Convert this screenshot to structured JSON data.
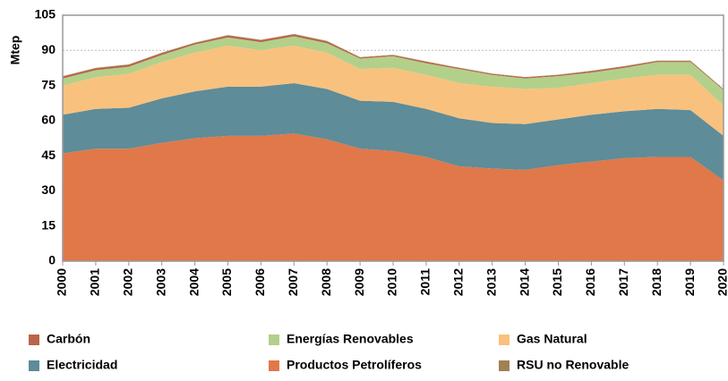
{
  "chart_data": {
    "type": "stacked_area",
    "y_label": "Mtep",
    "categories": [
      "2000",
      "2001",
      "2002",
      "2003",
      "2004",
      "2005",
      "2006",
      "2007",
      "2008",
      "2009",
      "2010",
      "2011",
      "2012",
      "2013",
      "2014",
      "2015",
      "2016",
      "2017",
      "2018",
      "2019",
      "2020"
    ],
    "series": [
      {
        "name": "Productos Petrolíferos",
        "color": "#e0784a",
        "values": [
          46,
          48,
          48,
          50.5,
          52.5,
          53.5,
          53.5,
          54.5,
          52,
          48,
          47,
          44.5,
          40.5,
          39.5,
          39,
          41,
          42.5,
          44,
          44.5,
          44.5,
          34.5
        ]
      },
      {
        "name": "Electricidad",
        "color": "#5e8c98",
        "values": [
          16.5,
          17,
          17.5,
          19,
          20,
          21,
          21,
          21.5,
          21.5,
          20.5,
          21,
          20.5,
          20.5,
          19.5,
          19.5,
          19.5,
          20,
          20,
          20.5,
          20,
          19
        ]
      },
      {
        "name": "Gas Natural",
        "color": "#f9c17e",
        "values": [
          12.5,
          13.5,
          14.5,
          15.5,
          16.5,
          17.5,
          15.5,
          16,
          15.5,
          13.5,
          14.5,
          14.5,
          15,
          15.5,
          15,
          13.5,
          13.5,
          14,
          14.5,
          15,
          13
        ]
      },
      {
        "name": "Energías Renovables",
        "color": "#b3d08a",
        "values": [
          3,
          3,
          3,
          3,
          3.5,
          3.5,
          3.5,
          4,
          4,
          4.5,
          5,
          5,
          6,
          5,
          4.5,
          5,
          4.5,
          4.5,
          5.5,
          5.5,
          6.5
        ]
      },
      {
        "name": "Carbón",
        "color": "#b8654a",
        "values": [
          0.8,
          0.8,
          0.8,
          0.8,
          0.6,
          0.8,
          0.8,
          0.8,
          0.8,
          0.4,
          0.4,
          0.6,
          0.4,
          0.4,
          0.4,
          0.4,
          0.6,
          0.6,
          0.4,
          0.4,
          0.3
        ]
      },
      {
        "name": "RSU no Renovable",
        "color": "#a08152",
        "values": [
          0.2,
          0.2,
          0.2,
          0.2,
          0.2,
          0.2,
          0.2,
          0.2,
          0.2,
          0.2,
          0.2,
          0.2,
          0.2,
          0.2,
          0.2,
          0.2,
          0.2,
          0.2,
          0.2,
          0.2,
          0.2
        ]
      }
    ],
    "ylim": [
      0,
      105
    ],
    "yticks": [
      0,
      15,
      30,
      45,
      60,
      75,
      90,
      105
    ],
    "grid": true
  }
}
